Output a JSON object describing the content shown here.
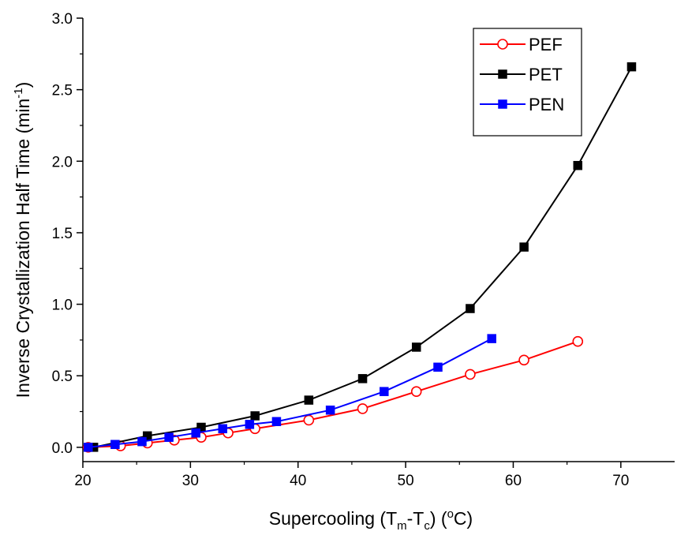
{
  "chart_data": {
    "type": "line",
    "title": "",
    "xlabel": {
      "base": "Supercooling (T",
      "sub1": "m",
      "mid": "-T",
      "sub2": "c",
      "post": ") (",
      "sup": "o",
      "end": "C)"
    },
    "ylabel": {
      "base": "Inverse Crystallization Half Time (min",
      "sup": "-1",
      "end": ")"
    },
    "xlim": [
      20,
      75
    ],
    "ylim": [
      -0.1,
      3.0
    ],
    "x_ticks": [
      20,
      30,
      40,
      50,
      60,
      70
    ],
    "x_tick_labels": [
      "20",
      "30",
      "40",
      "50",
      "60",
      "70"
    ],
    "y_ticks": [
      0.0,
      0.5,
      1.0,
      1.5,
      2.0,
      2.5,
      3.0
    ],
    "y_tick_labels": [
      "0.0",
      "0.5",
      "1.0",
      "1.5",
      "2.0",
      "2.5",
      "3.0"
    ],
    "grid": false,
    "legend_position": "top-right",
    "series": [
      {
        "name": "PEF",
        "color": "#ff0000",
        "marker": "open-circle",
        "x": [
          20.5,
          23.5,
          26,
          28.5,
          31,
          33.5,
          36,
          41,
          46,
          51,
          56,
          61,
          66
        ],
        "y": [
          0.0,
          0.01,
          0.03,
          0.05,
          0.07,
          0.1,
          0.13,
          0.19,
          0.27,
          0.39,
          0.51,
          0.61,
          0.74
        ]
      },
      {
        "name": "PET",
        "color": "#000000",
        "marker": "filled-square",
        "x": [
          21,
          26,
          31,
          36,
          41,
          46,
          51,
          56,
          61,
          66,
          71
        ],
        "y": [
          0.0,
          0.08,
          0.14,
          0.22,
          0.33,
          0.48,
          0.7,
          0.97,
          1.4,
          1.97,
          2.66
        ]
      },
      {
        "name": "PEN",
        "color": "#0000ff",
        "marker": "filled-square",
        "x": [
          20.5,
          23,
          25.5,
          28,
          30.5,
          33,
          35.5,
          38,
          43,
          48,
          53,
          58
        ],
        "y": [
          0.0,
          0.02,
          0.04,
          0.07,
          0.1,
          0.13,
          0.16,
          0.18,
          0.26,
          0.39,
          0.56,
          0.76
        ]
      }
    ]
  }
}
